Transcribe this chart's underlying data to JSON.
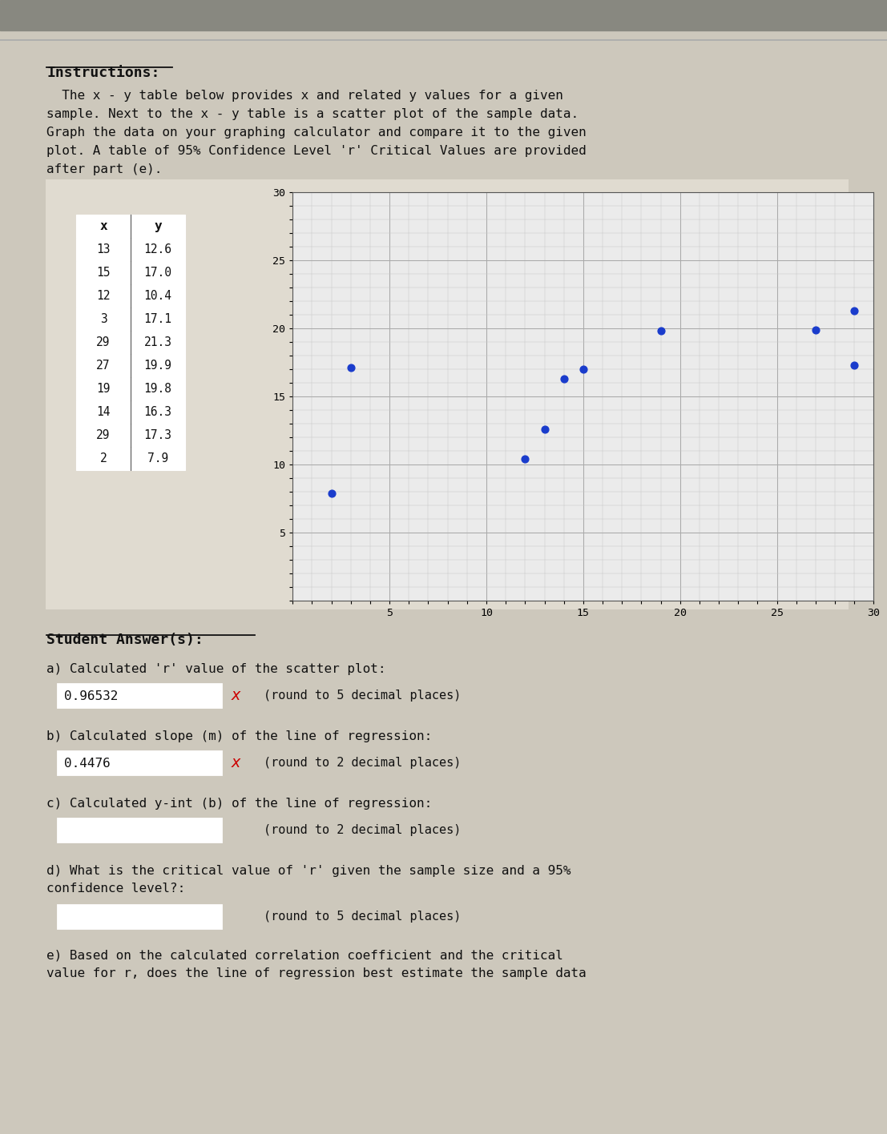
{
  "instructions_title": "Instructions:",
  "instructions_body_lines": [
    "  The x - y table below provides x and related y values for a given",
    "sample. Next to the x - y table is a scatter plot of the sample data.",
    "Graph the data on your graphing calculator and compare it to the given",
    "plot. A table of 95% Confidence Level 'r' Critical Values are provided",
    "after part (e)."
  ],
  "table_data": [
    [
      13,
      12.6
    ],
    [
      15,
      17.0
    ],
    [
      12,
      10.4
    ],
    [
      3,
      17.1
    ],
    [
      29,
      21.3
    ],
    [
      27,
      19.9
    ],
    [
      19,
      19.8
    ],
    [
      14,
      16.3
    ],
    [
      29,
      17.3
    ],
    [
      2,
      7.9
    ]
  ],
  "scatter_x": [
    13,
    15,
    12,
    3,
    29,
    27,
    19,
    14,
    29,
    2
  ],
  "scatter_y": [
    12.6,
    17.0,
    10.4,
    17.1,
    21.3,
    19.9,
    19.8,
    16.3,
    17.3,
    7.9
  ],
  "scatter_color": "#1a3ccc",
  "scatter_size": 40,
  "student_answers_title": "Student Answer(s):",
  "part_a_label": "a) Calculated 'r' value of the scatter plot:",
  "part_a_value": "0.96532",
  "part_a_suffix": "(round to 5 decimal places)",
  "part_a_has_x": true,
  "part_b_label": "b) Calculated slope (m) of the line of regression:",
  "part_b_value": "0.4476",
  "part_b_suffix": "(round to 2 decimal places)",
  "part_b_has_x": true,
  "part_c_label": "c) Calculated y-int (b) of the line of regression:",
  "part_c_suffix": "(round to 2 decimal places)",
  "part_d_label_lines": [
    "d) What is the critical value of 'r' given the sample size and a 95%",
    "confidence level?:"
  ],
  "part_d_suffix": "(round to 5 decimal places)",
  "part_e_label_lines": [
    "e) Based on the calculated correlation coefficient and the critical",
    "value for r, does the line of regression best estimate the sample data"
  ],
  "bg_color": "#cdc8bc",
  "panel_color": "#e0dbd0",
  "text_color": "#111111",
  "monospace_font": "DejaVu Sans Mono",
  "x_mark_color": "#cc0000",
  "top_bar_color": "#888880",
  "grid_minor_color": "#c8c8c8",
  "grid_major_color": "#aaaaaa"
}
